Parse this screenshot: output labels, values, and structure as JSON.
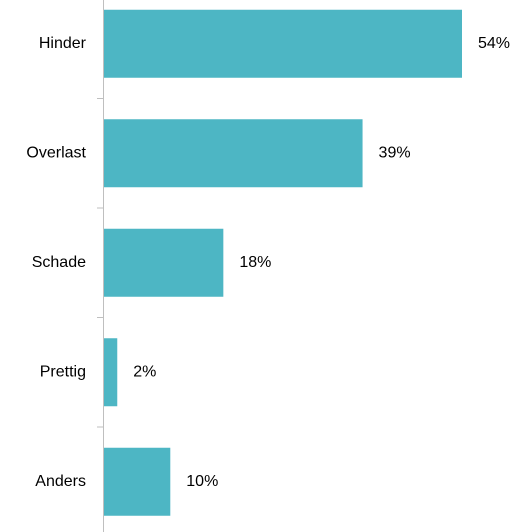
{
  "chart_data": {
    "type": "bar",
    "orientation": "horizontal",
    "categories": [
      "Hinder",
      "Overlast",
      "Schade",
      "Prettig",
      "Anders"
    ],
    "values": [
      54,
      39,
      18,
      2,
      10
    ],
    "value_labels": [
      "54%",
      "39%",
      "18%",
      "2%",
      "10%"
    ],
    "color": "#4db6c4"
  }
}
